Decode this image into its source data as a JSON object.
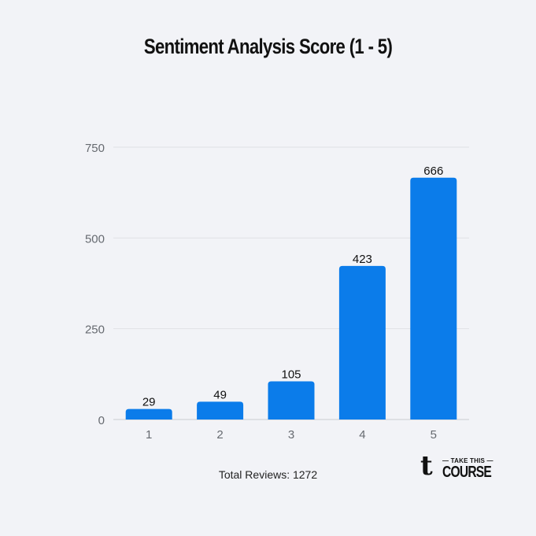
{
  "chart_data": {
    "type": "bar",
    "title": "Sentiment Analysis Score (1 - 5)",
    "categories": [
      "1",
      "2",
      "3",
      "4",
      "5"
    ],
    "values": [
      29,
      49,
      105,
      423,
      666
    ],
    "data_labels": [
      "29",
      "49",
      "105",
      "423",
      "666"
    ],
    "y_ticks": [
      0,
      250,
      500,
      750
    ],
    "ylim": [
      0,
      750
    ],
    "xlabel": "",
    "ylabel": "",
    "grid": true,
    "colors": {
      "bar": "#0b7cea",
      "grid": "#dfe1e6",
      "tick_text": "#666a70",
      "label_text": "#111111"
    }
  },
  "footer": {
    "total_reviews": "Total Reviews: 1272"
  },
  "logo": {
    "mark": "t",
    "top_text": "TAKE THIS",
    "bottom_text": "COURSE"
  }
}
